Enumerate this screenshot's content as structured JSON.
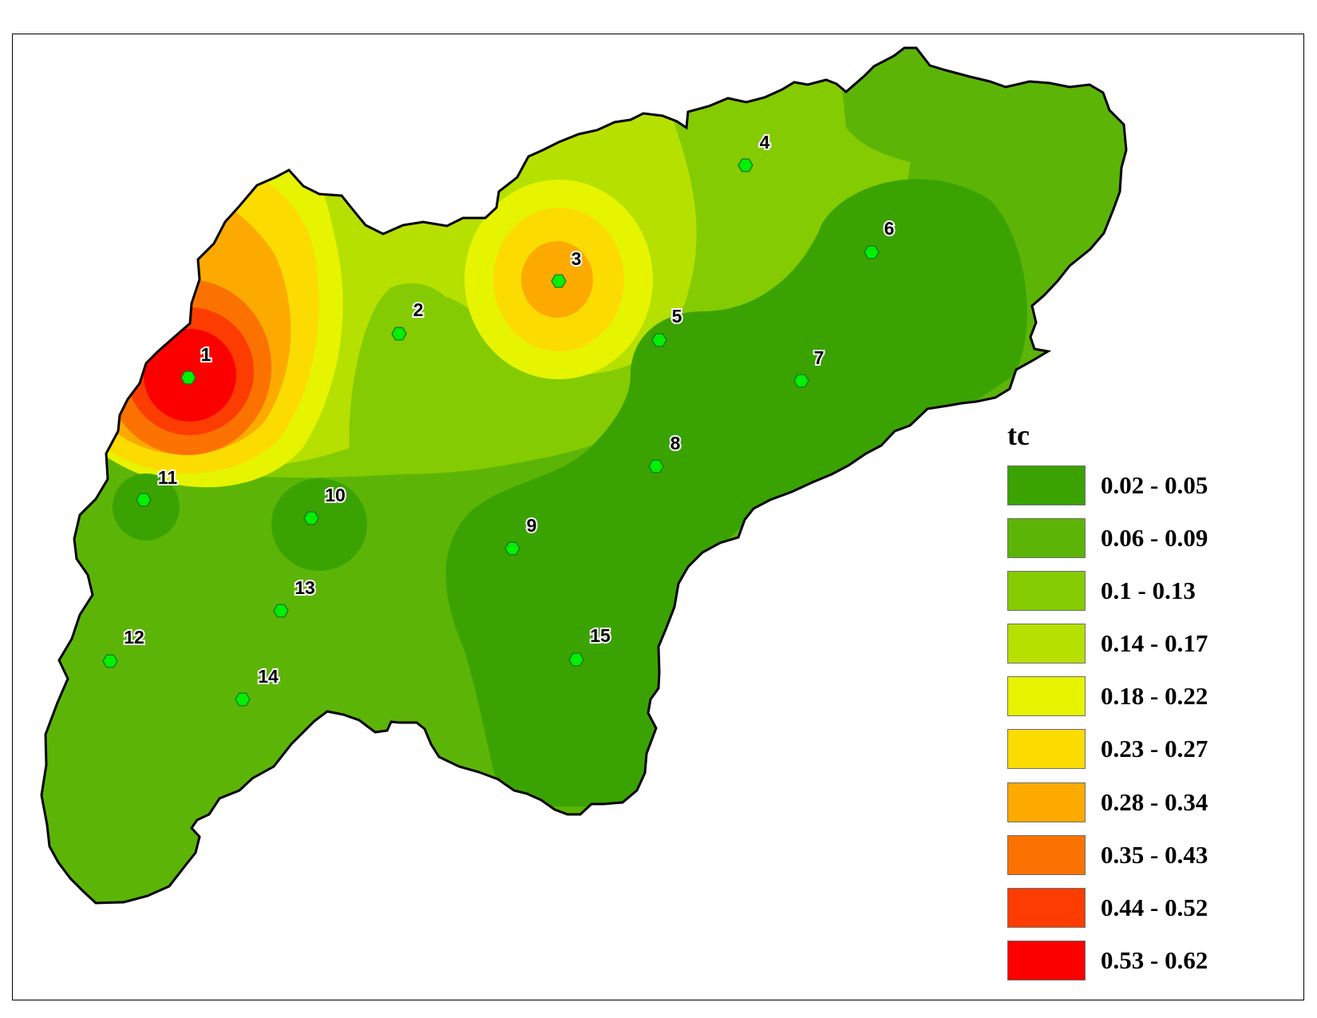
{
  "legend": {
    "title": "tc",
    "classes": [
      {
        "label": "0.02 - 0.05",
        "color": "#3aa302"
      },
      {
        "label": "0.06 - 0.09",
        "color": "#5cb506"
      },
      {
        "label": "0.1 - 0.13",
        "color": "#84cb02"
      },
      {
        "label": "0.14 - 0.17",
        "color": "#b6e000"
      },
      {
        "label": "0.18 - 0.22",
        "color": "#e6f400"
      },
      {
        "label": "0.23 - 0.27",
        "color": "#fcdc00"
      },
      {
        "label": "0.28 - 0.34",
        "color": "#fcaa00"
      },
      {
        "label": "0.35 - 0.43",
        "color": "#fc7200"
      },
      {
        "label": "0.44 - 0.52",
        "color": "#fc3c00"
      },
      {
        "label": "0.53 - 0.62",
        "color": "#fc0000"
      }
    ]
  },
  "stations": [
    {
      "label": "1"
    },
    {
      "label": "2"
    },
    {
      "label": "3"
    },
    {
      "label": "4"
    },
    {
      "label": "5"
    },
    {
      "label": "6"
    },
    {
      "label": "7"
    },
    {
      "label": "8"
    },
    {
      "label": "9"
    },
    {
      "label": "10"
    },
    {
      "label": "11"
    },
    {
      "label": "12"
    },
    {
      "label": "13"
    },
    {
      "label": "14"
    },
    {
      "label": "15"
    }
  ],
  "colors": {
    "station_marker": "#00f000",
    "boundary": "#000000"
  }
}
